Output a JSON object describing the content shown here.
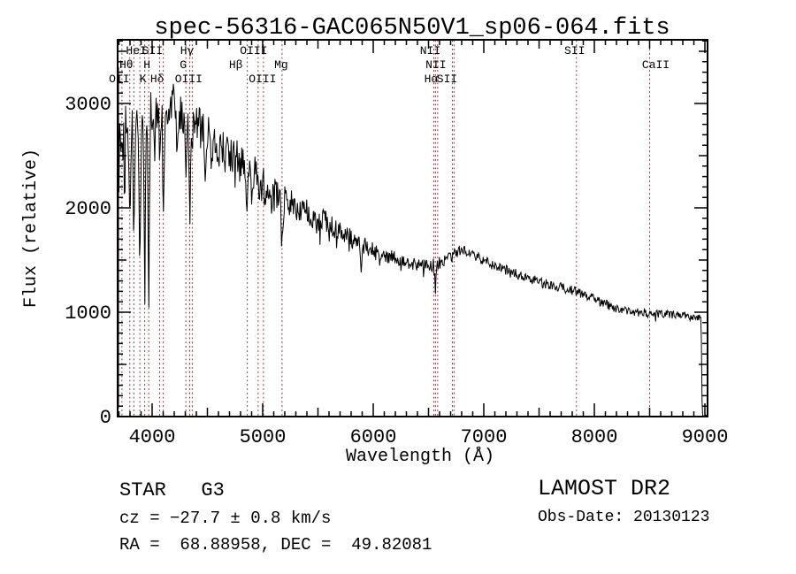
{
  "header": {
    "title": "spec-56316-GAC065N50V1_sp06-064.fits"
  },
  "chart_data": {
    "type": "line",
    "title": "spec-56316-GAC065N50V1_sp06-064.fits",
    "xlabel": "Wavelength (Å)",
    "ylabel": "Flux (relative)",
    "xlim": [
      3688,
      9024
    ],
    "ylim": [
      0,
      3610
    ],
    "x_ticks_labeled": [
      4000,
      5000,
      6000,
      7000,
      8000,
      9000
    ],
    "y_ticks_labeled": [
      0,
      1000,
      2000,
      3000
    ],
    "minor_tick_step_x": 100,
    "minor_tick_step_y": 100,
    "grid": false,
    "trace_color": "#000000",
    "marker_line_color": "#7b3434",
    "continuum_points": [
      [
        3689,
        1900
      ],
      [
        3698,
        2700
      ],
      [
        3720,
        2780
      ],
      [
        3800,
        2830
      ],
      [
        3900,
        2880
      ],
      [
        4000,
        2960
      ],
      [
        4080,
        3030
      ],
      [
        4160,
        3050
      ],
      [
        4250,
        2940
      ],
      [
        4350,
        2830
      ],
      [
        4450,
        2720
      ],
      [
        4550,
        2630
      ],
      [
        4650,
        2540
      ],
      [
        4750,
        2460
      ],
      [
        4850,
        2390
      ],
      [
        4950,
        2280
      ],
      [
        5050,
        2170
      ],
      [
        5175,
        2090
      ],
      [
        5300,
        2010
      ],
      [
        5450,
        1930
      ],
      [
        5600,
        1840
      ],
      [
        5750,
        1740
      ],
      [
        5900,
        1640
      ],
      [
        6050,
        1560
      ],
      [
        6200,
        1520
      ],
      [
        6350,
        1470
      ],
      [
        6500,
        1440
      ],
      [
        6650,
        1490
      ],
      [
        6800,
        1600
      ],
      [
        6900,
        1555
      ],
      [
        7000,
        1500
      ],
      [
        7100,
        1440
      ],
      [
        7250,
        1380
      ],
      [
        7400,
        1325
      ],
      [
        7550,
        1275
      ],
      [
        7700,
        1235
      ],
      [
        7850,
        1195
      ],
      [
        8000,
        1125
      ],
      [
        8200,
        1030
      ],
      [
        8400,
        1000
      ],
      [
        8600,
        985
      ],
      [
        8800,
        965
      ],
      [
        8950,
        945
      ],
      [
        8965,
        930
      ],
      [
        8970,
        620
      ],
      [
        8974,
        150
      ],
      [
        8978,
        12
      ],
      [
        9020,
        10
      ]
    ],
    "absorption_features": [
      [
        3727,
        500,
        5
      ],
      [
        3750,
        550,
        5
      ],
      [
        3798,
        800,
        6
      ],
      [
        3835,
        1150,
        6
      ],
      [
        3889,
        1350,
        6
      ],
      [
        3933,
        1620,
        6
      ],
      [
        3969,
        1700,
        6
      ],
      [
        4026,
        420,
        5
      ],
      [
        4068,
        500,
        5
      ],
      [
        4101,
        1080,
        6
      ],
      [
        4144,
        380,
        5
      ],
      [
        4226,
        420,
        5
      ],
      [
        4305,
        620,
        8
      ],
      [
        4340,
        1020,
        6
      ],
      [
        4363,
        380,
        5
      ],
      [
        4481,
        300,
        5
      ],
      [
        4861,
        430,
        7
      ],
      [
        5175,
        380,
        9
      ],
      [
        5893,
        210,
        7
      ],
      [
        6563,
        240,
        5
      ]
    ],
    "noise_profile": [
      [
        3689,
        1350
      ],
      [
        3696,
        750
      ],
      [
        3706,
        310
      ],
      [
        3730,
        265
      ],
      [
        3900,
        245
      ],
      [
        4300,
        225
      ],
      [
        4700,
        205
      ],
      [
        5000,
        185
      ],
      [
        5300,
        150
      ],
      [
        5600,
        115
      ],
      [
        5900,
        90
      ],
      [
        6200,
        70
      ],
      [
        6600,
        58
      ],
      [
        7000,
        52
      ],
      [
        7400,
        48
      ],
      [
        8000,
        44
      ],
      [
        8600,
        40
      ],
      [
        8960,
        36
      ],
      [
        8972,
        8
      ],
      [
        9020,
        4
      ]
    ],
    "spectral_lines": [
      {
        "wavelength": 3727,
        "label": "OII",
        "row": 3,
        "dx": -3
      },
      {
        "wavelength": 3798,
        "label": "Hθ",
        "row": 2,
        "dx": -4
      },
      {
        "wavelength": 3835,
        "label": "",
        "row": 0,
        "dx": 0
      },
      {
        "wavelength": 3889,
        "label": "HeI",
        "row": 1,
        "dx": -4
      },
      {
        "wavelength": 3933,
        "label": "K",
        "row": 3,
        "dx": -2
      },
      {
        "wavelength": 3969,
        "label": "H",
        "row": 2,
        "dx": -2
      },
      {
        "wavelength": 4068,
        "label": "SII",
        "row": 1,
        "dx": -8
      },
      {
        "wavelength": 4101,
        "label": "Hδ",
        "row": 3,
        "dx": -7
      },
      {
        "wavelength": 4305,
        "label": "G",
        "row": 2,
        "dx": -3
      },
      {
        "wavelength": 4340,
        "label": "Hγ",
        "row": 1,
        "dx": -3
      },
      {
        "wavelength": 4363,
        "label": "OIII",
        "row": 3,
        "dx": -4
      },
      {
        "wavelength": 4861,
        "label": "Hβ",
        "row": 2,
        "dx": -13
      },
      {
        "wavelength": 4959,
        "label": "OIII",
        "row": 1,
        "dx": -5
      },
      {
        "wavelength": 5007,
        "label": "OIII",
        "row": 3,
        "dx": -1
      },
      {
        "wavelength": 5175,
        "label": "Mg",
        "row": 2,
        "dx": -1
      },
      {
        "wavelength": 6548,
        "label": "NII",
        "row": 1,
        "dx": -4
      },
      {
        "wavelength": 6563,
        "label": "Hα",
        "row": 3,
        "dx": -5
      },
      {
        "wavelength": 6583,
        "label": "NII",
        "row": 2,
        "dx": -2
      },
      {
        "wavelength": 6716,
        "label": "SII",
        "row": 3,
        "dx": -6
      },
      {
        "wavelength": 6731,
        "label": "",
        "row": 0,
        "dx": 0
      },
      {
        "wavelength": 7838,
        "label": "SII",
        "row": 1,
        "dx": -2
      },
      {
        "wavelength": 8500,
        "label": "CaII",
        "row": 2,
        "dx": 7
      }
    ]
  },
  "annotations": {
    "class_label": "STAR   G3",
    "cz": "cz = −27.7 ± 0.8 km/s",
    "radec": "RA =  68.88958, DEC =  49.82081",
    "survey": "LAMOST DR2",
    "obs_date": "Obs-Date: 20130123"
  }
}
